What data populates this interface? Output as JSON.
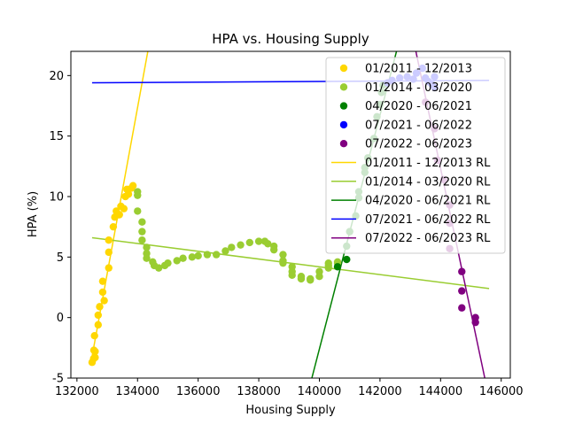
{
  "chart_data": {
    "type": "scatter",
    "title": "HPA vs. Housing Supply",
    "xlabel": "Housing Supply",
    "ylabel": "HPA (%)",
    "xlim": [
      131800,
      146300
    ],
    "ylim": [
      -5,
      22
    ],
    "x_ticks": [
      132000,
      134000,
      136000,
      138000,
      140000,
      142000,
      144000,
      146000
    ],
    "y_ticks": [
      -5,
      0,
      5,
      10,
      15,
      20
    ],
    "grid": false,
    "legend_position": "upper right",
    "series": [
      {
        "name": "01/2011 - 12/2013",
        "color": "#FFD700",
        "points": [
          [
            132500,
            -3.7
          ],
          [
            132550,
            -3.4
          ],
          [
            132600,
            -3.3
          ],
          [
            132560,
            -2.7
          ],
          [
            132600,
            -2.8
          ],
          [
            132580,
            -1.5
          ],
          [
            132700,
            -0.6
          ],
          [
            132700,
            0.2
          ],
          [
            132750,
            0.9
          ],
          [
            132900,
            1.4
          ],
          [
            132850,
            2.1
          ],
          [
            132850,
            3.0
          ],
          [
            133050,
            4.1
          ],
          [
            133050,
            5.4
          ],
          [
            133050,
            6.4
          ],
          [
            133200,
            7.5
          ],
          [
            133250,
            8.3
          ],
          [
            133300,
            8.8
          ],
          [
            133400,
            8.5
          ],
          [
            133450,
            9.2
          ],
          [
            133550,
            9.0
          ],
          [
            133600,
            10.0
          ],
          [
            133650,
            10.6
          ],
          [
            133700,
            10.2
          ],
          [
            133800,
            10.7
          ],
          [
            133850,
            10.9
          ]
        ]
      },
      {
        "name": "01/2014 - 03/2020",
        "color": "#9ACD32",
        "points": [
          [
            134000,
            8.8
          ],
          [
            134000,
            10.1
          ],
          [
            134000,
            10.4
          ],
          [
            134150,
            7.9
          ],
          [
            134150,
            7.1
          ],
          [
            134150,
            6.4
          ],
          [
            134300,
            5.8
          ],
          [
            134300,
            5.3
          ],
          [
            134300,
            4.9
          ],
          [
            134500,
            4.6
          ],
          [
            134550,
            4.3
          ],
          [
            134700,
            4.1
          ],
          [
            134900,
            4.3
          ],
          [
            135000,
            4.5
          ],
          [
            135300,
            4.7
          ],
          [
            135500,
            4.9
          ],
          [
            135800,
            5.0
          ],
          [
            136000,
            5.1
          ],
          [
            136300,
            5.2
          ],
          [
            136600,
            5.2
          ],
          [
            136900,
            5.5
          ],
          [
            137100,
            5.8
          ],
          [
            137400,
            6.0
          ],
          [
            137700,
            6.2
          ],
          [
            138000,
            6.3
          ],
          [
            138200,
            6.3
          ],
          [
            138300,
            6.1
          ],
          [
            138500,
            5.9
          ],
          [
            138500,
            5.6
          ],
          [
            138800,
            5.2
          ],
          [
            138800,
            4.7
          ],
          [
            138800,
            4.5
          ],
          [
            139100,
            4.2
          ],
          [
            139100,
            3.8
          ],
          [
            139100,
            3.5
          ],
          [
            139400,
            3.4
          ],
          [
            139400,
            3.2
          ],
          [
            139700,
            3.1
          ],
          [
            139700,
            3.2
          ],
          [
            140000,
            3.4
          ],
          [
            140000,
            3.8
          ],
          [
            140300,
            4.1
          ],
          [
            140300,
            4.3
          ],
          [
            140300,
            4.5
          ],
          [
            140600,
            4.6
          ],
          [
            140600,
            4.5
          ]
        ]
      },
      {
        "name": "04/2020 - 06/2021",
        "color": "#008000",
        "points": [
          [
            140600,
            4.2
          ],
          [
            140900,
            4.8
          ],
          [
            140900,
            5.9
          ],
          [
            141000,
            7.1
          ],
          [
            141200,
            8.4
          ],
          [
            141300,
            9.9
          ],
          [
            141300,
            10.4
          ],
          [
            141500,
            12.0
          ],
          [
            141500,
            12.4
          ],
          [
            141600,
            13.2
          ],
          [
            141800,
            14.8
          ],
          [
            141900,
            16.6
          ],
          [
            142000,
            17.6
          ],
          [
            142050,
            18.6
          ],
          [
            142100,
            19.2
          ]
        ]
      },
      {
        "name": "07/2021 - 06/2022",
        "color": "#0000FF",
        "points": [
          [
            142250,
            19.4
          ],
          [
            142400,
            19.6
          ],
          [
            142650,
            19.8
          ],
          [
            142900,
            19.9
          ],
          [
            143100,
            19.7
          ],
          [
            143200,
            20.2
          ],
          [
            143400,
            20.6
          ],
          [
            143500,
            19.8
          ],
          [
            143600,
            19.5
          ],
          [
            143800,
            19.9
          ],
          [
            143700,
            19.3
          ],
          [
            143800,
            19.0
          ]
        ]
      },
      {
        "name": "07/2022 - 06/2023",
        "color": "#800080",
        "points": [
          [
            143500,
            17.8
          ],
          [
            143800,
            15.6
          ],
          [
            143900,
            13.0
          ],
          [
            144100,
            11.4
          ],
          [
            144300,
            9.3
          ],
          [
            144300,
            7.8
          ],
          [
            144300,
            5.7
          ],
          [
            144700,
            3.8
          ],
          [
            144700,
            2.2
          ],
          [
            144700,
            0.8
          ],
          [
            145150,
            0.0
          ],
          [
            145150,
            -0.4
          ]
        ]
      }
    ],
    "regression_lines": [
      {
        "name": "01/2011 - 12/2013 RL",
        "color": "#FFD700",
        "x": [
          132500,
          134500
        ],
        "y": [
          -3.2,
          24.2
        ]
      },
      {
        "name": "01/2014 - 03/2020 RL",
        "color": "#9ACD32",
        "x": [
          132500,
          145600
        ],
        "y": [
          6.6,
          2.4
        ]
      },
      {
        "name": "04/2020 - 06/2021 RL",
        "color": "#008000",
        "x": [
          139700,
          142700
        ],
        "y": [
          -5.5,
          23.5
        ]
      },
      {
        "name": "07/2021 - 06/2022 RL",
        "color": "#0000FF",
        "x": [
          132500,
          145600
        ],
        "y": [
          19.4,
          19.6
        ]
      },
      {
        "name": "07/2022 - 06/2023 RL",
        "color": "#800080",
        "x": [
          143100,
          145500
        ],
        "y": [
          23.0,
          -5.5
        ]
      }
    ]
  }
}
